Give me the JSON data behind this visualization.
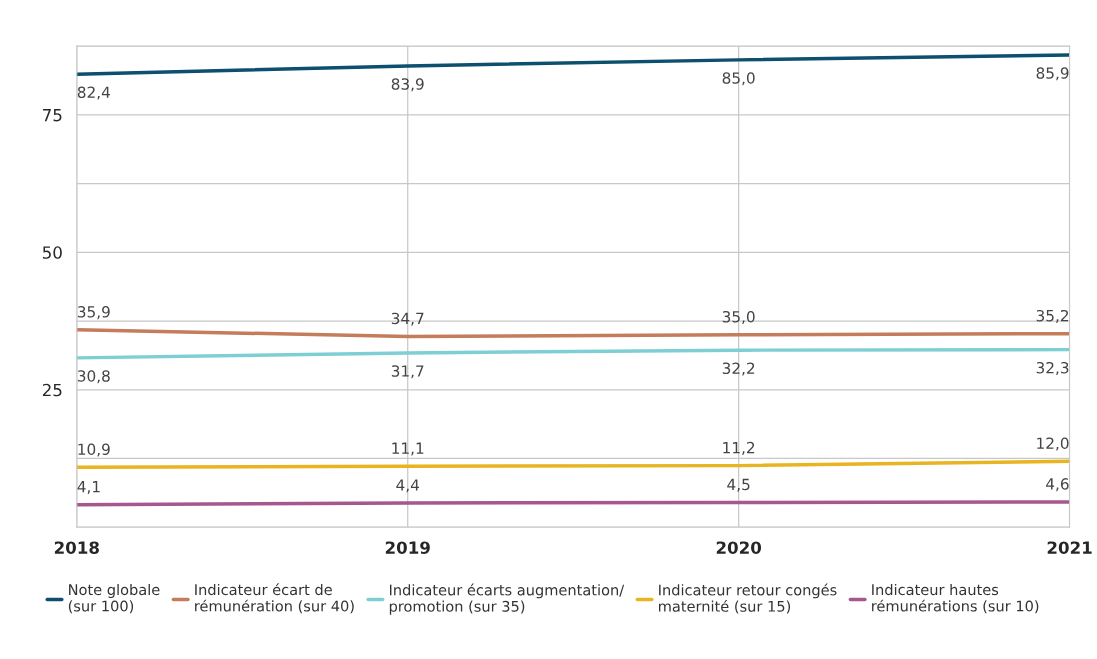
{
  "chart_data": {
    "type": "line",
    "x": [
      2018,
      2019,
      2020,
      2021
    ],
    "xlim": [
      2018,
      2021
    ],
    "xticks": [
      2018,
      2019,
      2020,
      2021
    ],
    "ylim": [
      0,
      87.5
    ],
    "yticks": [
      {
        "value": 0,
        "label": null
      },
      {
        "value": 12.5,
        "label": null
      },
      25,
      {
        "value": 37.5,
        "label": null
      },
      50,
      {
        "value": 62.5,
        "label": null
      },
      75,
      {
        "value": 87.5,
        "label": null
      }
    ],
    "grid": true,
    "legend": "bottom",
    "marker": "none",
    "line_style": "solid",
    "series": [
      {
        "name": "Note globale\n(sur 100)",
        "color": "#0d4f6e",
        "values": [
          82.4,
          83.9,
          85.0,
          85.9
        ],
        "value_labels": [
          "82,4",
          "83,9",
          "85,0",
          "85,9"
        ]
      },
      {
        "name": "Indicateur écart de\nrémunération (sur 40)",
        "color": "#c47c5a",
        "values": [
          35.9,
          34.7,
          35.0,
          35.2
        ],
        "value_labels": [
          "35,9",
          "34,7",
          "35,0",
          "35,2"
        ]
      },
      {
        "name": "Indicateur écarts augmentation/\npromotion (sur 35)",
        "color": "#7ecfd4",
        "values": [
          30.8,
          31.7,
          32.2,
          32.3
        ],
        "value_labels": [
          "30,8",
          "31,7",
          "32,2",
          "32,3"
        ]
      },
      {
        "name": "Indicateur retour congés\nmaternité (sur 15)",
        "color": "#e8b422",
        "values": [
          10.9,
          11.1,
          11.2,
          12.0
        ],
        "value_labels": [
          "10,9",
          "11,1",
          "11,2",
          "12,0"
        ]
      },
      {
        "name": "Indicateur hautes\nrémunérations (sur 10)",
        "color": "#a5578e",
        "values": [
          4.1,
          4.4,
          4.5,
          4.6
        ],
        "value_labels": [
          "4,1",
          "4,4",
          "4,5",
          "4,6"
        ]
      }
    ]
  }
}
